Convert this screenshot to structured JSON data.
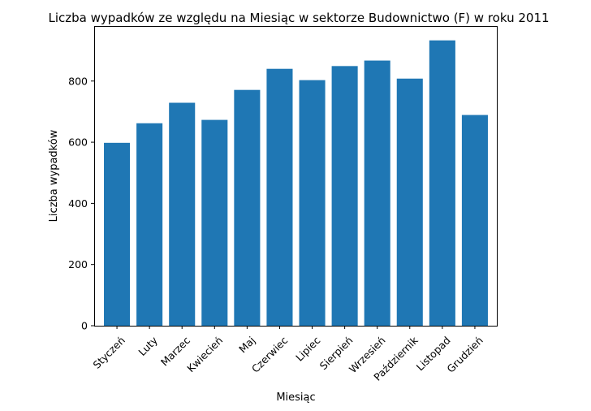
{
  "chart_data": {
    "type": "bar",
    "title": "Liczba wypadków ze względu na Miesiąc w sektorze Budownictwo  (F)    w roku 2011",
    "xlabel": "Miesiąc",
    "ylabel": "Liczba wypadków",
    "categories": [
      "Styczeń",
      "Luty",
      "Marzec",
      "Kwiecień",
      "Maj",
      "Czerwiec",
      "Lipiec",
      "Sierpień",
      "Wrzesień",
      "Październik",
      "Listopad",
      "Grudzień"
    ],
    "values": [
      598,
      662,
      729,
      673,
      771,
      840,
      803,
      849,
      867,
      808,
      933,
      689
    ],
    "ylim": [
      0,
      980
    ],
    "yticks": [
      0,
      200,
      400,
      600,
      800
    ],
    "grid": false,
    "bar_color": "#1f77b4"
  }
}
